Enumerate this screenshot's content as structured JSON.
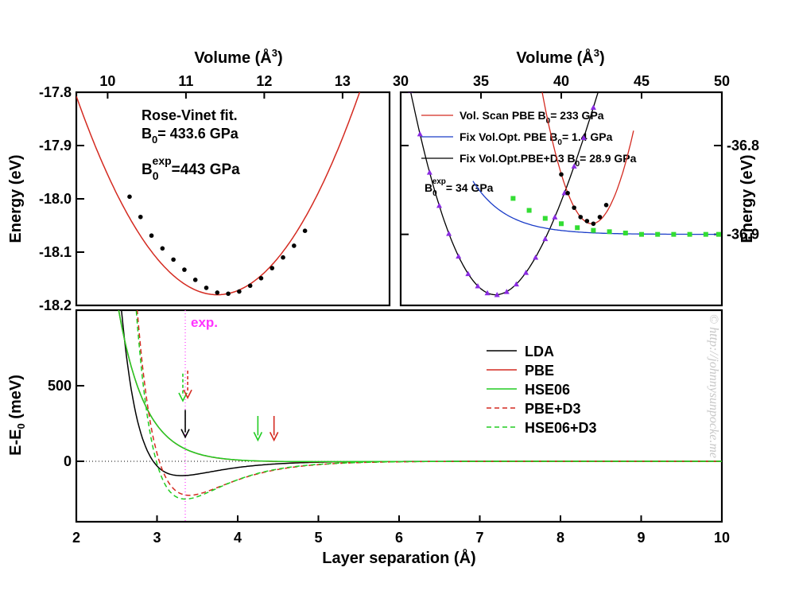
{
  "colors": {
    "axis": "#000000",
    "lda": "#000000",
    "pbe": "#d42a20",
    "hse": "#22cc22",
    "pbe_d3": "#d42a20",
    "hse_d3": "#22cc22",
    "scan_pbe": "#d42a20",
    "fix_pbe": "#1a3cc8",
    "fix_pbe_d3": "#000000",
    "vol_points": "#000000",
    "green_points": "#33dd33",
    "purple_points": "#8a2be2",
    "exp": "#ff33ff",
    "black_arrow": "#000000",
    "red_arrow": "#d42a20",
    "green_arrow": "#22cc22",
    "watermark": "#c8c8c8"
  },
  "chart_data": [
    {
      "id": "top_left",
      "type": "line",
      "title": "",
      "xlabel_top": "Volume (Å3)",
      "xlabel_top_text": "Volume (Å",
      "xlabel_top_sup": "3",
      "xlabel_top_close": ")",
      "ylabel": "Energy (eV)",
      "x_top_range": [
        9.6,
        13.6
      ],
      "x_top_ticks": [
        "10",
        "11",
        "12",
        "13"
      ],
      "x_top_tick_values": [
        10,
        11,
        12,
        13
      ],
      "ylim": [
        -18.2,
        -17.8
      ],
      "y_ticks": [
        "-17.8",
        "-17.9",
        "-18.0",
        "-18.1",
        "-18.2"
      ],
      "y_tick_values": [
        -17.8,
        -17.9,
        -18.0,
        -18.1,
        -18.2
      ],
      "fit": {
        "name": "Rose-Vinet fit",
        "E0": -18.18,
        "V0": 11.4,
        "curvature": 0.115
      },
      "points": [
        {
          "v": 10.28,
          "e": -17.996
        },
        {
          "v": 10.42,
          "e": -18.034
        },
        {
          "v": 10.56,
          "e": -18.069
        },
        {
          "v": 10.7,
          "e": -18.093
        },
        {
          "v": 10.84,
          "e": -18.114
        },
        {
          "v": 10.98,
          "e": -18.133
        },
        {
          "v": 11.12,
          "e": -18.152
        },
        {
          "v": 11.26,
          "e": -18.167
        },
        {
          "v": 11.4,
          "e": -18.176
        },
        {
          "v": 11.54,
          "e": -18.178
        },
        {
          "v": 11.68,
          "e": -18.174
        },
        {
          "v": 11.82,
          "e": -18.163
        },
        {
          "v": 11.96,
          "e": -18.149
        },
        {
          "v": 12.1,
          "e": -18.13
        },
        {
          "v": 12.24,
          "e": -18.11
        },
        {
          "v": 12.38,
          "e": -18.088
        },
        {
          "v": 12.52,
          "e": -18.06
        }
      ],
      "annotation": {
        "line1": "Rose-Vinet fit.",
        "line2_main": "B",
        "line2_sub": "0",
        "line2_rest": "= 433.6 GPa",
        "line3_main": "B",
        "line3_sub": "0",
        "line3_sup": "exp",
        "line3_rest": "=443 GPa"
      }
    },
    {
      "id": "top_right",
      "type": "line",
      "xlabel_top": "Volume (Å3)",
      "xlabel_top_text": "Volume (Å",
      "xlabel_top_sup": "3",
      "xlabel_top_close": ")",
      "ylabel": "Energy (eV)",
      "x_top_range": [
        30,
        50
      ],
      "x_top_ticks": [
        "30",
        "35",
        "40",
        "45",
        "50"
      ],
      "x_top_tick_values": [
        30,
        35,
        40,
        45,
        50
      ],
      "ylim": [
        -36.98,
        -36.74
      ],
      "y_ticks": [
        "-36.8",
        "-36.9"
      ],
      "y_tick_values": [
        -36.8,
        -36.9
      ],
      "series": [
        {
          "name": "Vol. Scan PBE",
          "label_main": "Vol. Scan PBE B",
          "label_sub": "0",
          "label_rest": "= 233 GPa",
          "B0": 233,
          "color_key": "scan_pbe"
        },
        {
          "name": "Fix Vol.Opt. PBE",
          "label_main": "Fix Vol.Opt. PBE B",
          "label_sub": "0",
          "label_rest": "= 1.4 GPa",
          "B0": 1.4,
          "color_key": "fix_pbe"
        },
        {
          "name": "Fix Vol.Opt.PBE+D3",
          "label_main": "Fix Vol.Opt.PBE+D3 B",
          "label_sub": "0",
          "label_rest": "= 28.9 GPa",
          "B0": 28.9,
          "color_key": "fix_pbe_d3"
        }
      ],
      "annotation": {
        "main": "B",
        "sub": "0",
        "sup": "exp",
        "rest": "= 34 GPa"
      },
      "scan_pbe_points": [
        {
          "v": 40.0,
          "e": -36.8325
        },
        {
          "v": 40.4,
          "e": -36.8535
        },
        {
          "v": 40.8,
          "e": -36.87
        },
        {
          "v": 41.2,
          "e": -36.8805
        },
        {
          "v": 41.6,
          "e": -36.885
        },
        {
          "v": 42.0,
          "e": -36.888
        },
        {
          "v": 42.4,
          "e": -36.8805
        },
        {
          "v": 42.8,
          "e": -36.867
        }
      ],
      "fix_pbe_points": [
        {
          "v": 37.0,
          "e": -36.8595
        },
        {
          "v": 38.0,
          "e": -36.873
        },
        {
          "v": 39.0,
          "e": -36.882
        },
        {
          "v": 40.0,
          "e": -36.888
        },
        {
          "v": 41.0,
          "e": -36.8925
        },
        {
          "v": 42.0,
          "e": -36.8955
        },
        {
          "v": 43.0,
          "e": -36.897
        },
        {
          "v": 44.0,
          "e": -36.8985
        },
        {
          "v": 45.0,
          "e": -36.9
        },
        {
          "v": 46.0,
          "e": -36.9
        },
        {
          "v": 47.0,
          "e": -36.9
        },
        {
          "v": 48.0,
          "e": -36.9
        },
        {
          "v": 49.0,
          "e": -36.9
        },
        {
          "v": 49.8,
          "e": -36.9
        }
      ],
      "fix_pbe_d3_points": [
        {
          "v": 31.0,
          "e": -36.805
        },
        {
          "v": 32.0,
          "e": -36.865
        },
        {
          "v": 33.0,
          "e": -36.913
        },
        {
          "v": 34.0,
          "e": -36.947
        },
        {
          "v": 35.0,
          "e": -36.963
        },
        {
          "v": 36.0,
          "e": -36.968
        },
        {
          "v": 37.0,
          "e": -36.966
        },
        {
          "v": 38.0,
          "e": -36.955
        },
        {
          "v": 39.0,
          "e": -36.94
        },
        {
          "v": 40.0,
          "e": -36.921
        },
        {
          "v": 41.0,
          "e": -36.904
        },
        {
          "v": 42.0,
          "e": -36.887
        },
        {
          "v": 43.0,
          "e": -36.866
        },
        {
          "v": 44.0,
          "e": -36.848
        },
        {
          "v": 45.0,
          "e": -36.832
        },
        {
          "v": 46.0,
          "e": -36.817
        }
      ]
    },
    {
      "id": "bottom",
      "type": "line",
      "xlabel": "Layer separation (Å)",
      "ylabel_main": "E-E",
      "ylabel_sub": "0",
      "ylabel_rest": " (meV)",
      "xlim": [
        2,
        10
      ],
      "ylim": [
        -400,
        1000
      ],
      "x_ticks": [
        "2",
        "3",
        "4",
        "5",
        "6",
        "7",
        "8",
        "9",
        "10"
      ],
      "x_tick_values": [
        2,
        3,
        4,
        5,
        6,
        7,
        8,
        9,
        10
      ],
      "y_ticks": [
        "0",
        "500"
      ],
      "y_tick_values": [
        0,
        500
      ],
      "series": [
        {
          "name": "LDA",
          "color_key": "lda",
          "dashed": false,
          "emin": -95,
          "d0": 3.3,
          "repulsion": 6.0
        },
        {
          "name": "PBE",
          "color_key": "pbe",
          "dashed": false,
          "emin": -4,
          "d0": 4.45,
          "repulsion": 3.0
        },
        {
          "name": "HSE06",
          "color_key": "hse",
          "dashed": false,
          "emin": -3,
          "d0": 4.25,
          "repulsion": 3.3
        },
        {
          "name": "PBE+D3",
          "color_key": "pbe_d3",
          "dashed": true,
          "emin": -225,
          "d0": 3.4,
          "repulsion": 5.6
        },
        {
          "name": "HSE06+D3",
          "color_key": "hse_d3",
          "dashed": true,
          "emin": -250,
          "d0": 3.35,
          "repulsion": 5.8
        }
      ],
      "exp_line": {
        "x": 3.35,
        "label": "exp."
      },
      "arrows": [
        {
          "x": 3.35,
          "y_top": 340,
          "y_bottom": 160,
          "color_key": "black_arrow",
          "dashed": false
        },
        {
          "x": 3.32,
          "y_top": 580,
          "y_bottom": 400,
          "color_key": "green_arrow",
          "dashed": true
        },
        {
          "x": 3.38,
          "y_top": 600,
          "y_bottom": 420,
          "color_key": "red_arrow",
          "dashed": true
        },
        {
          "x": 4.25,
          "y_top": 300,
          "y_bottom": 140,
          "color_key": "green_arrow",
          "dashed": false
        },
        {
          "x": 4.45,
          "y_top": 300,
          "y_bottom": 140,
          "color_key": "red_arrow",
          "dashed": false
        }
      ]
    }
  ],
  "watermark": "© http://johnnysunpocke.me"
}
